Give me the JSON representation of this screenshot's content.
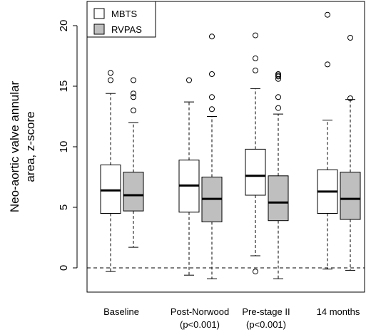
{
  "chart_data": {
    "type": "boxplot",
    "title": "",
    "xlabel": "",
    "ylabel": [
      "Neo-aortic valve annular",
      "area, z-score"
    ],
    "ylim": [
      -2,
      22
    ],
    "yticks": [
      0,
      5,
      10,
      15,
      20
    ],
    "reference_line": {
      "y": 0,
      "style": "dashed"
    },
    "legend": {
      "position": "top-left",
      "entries": [
        {
          "label": "MBTS",
          "color": "#ffffff"
        },
        {
          "label": "RVPAS",
          "color": "#bfbfbf"
        }
      ]
    },
    "categories": [
      {
        "label": "Baseline",
        "sublabel": ""
      },
      {
        "label": "Post-Norwood",
        "sublabel": "(p<0.001)"
      },
      {
        "label": "Pre-stage II",
        "sublabel": "(p<0.001)"
      },
      {
        "label": "14 months",
        "sublabel": ""
      }
    ],
    "series": [
      {
        "name": "MBTS",
        "color": "#ffffff",
        "boxes": [
          {
            "min": -0.3,
            "q1": 4.5,
            "median": 6.4,
            "q3": 8.5,
            "max": 14.4,
            "outliers": [
              15.5,
              16.1
            ]
          },
          {
            "min": -0.6,
            "q1": 4.6,
            "median": 6.8,
            "q3": 8.9,
            "max": 13.7,
            "outliers": [
              15.5
            ]
          },
          {
            "min": 1.0,
            "q1": 6.0,
            "median": 7.6,
            "q3": 9.8,
            "max": 14.8,
            "outliers": [
              -0.3,
              16.3,
              17.3,
              19.2
            ]
          },
          {
            "min": -0.1,
            "q1": 4.5,
            "median": 6.3,
            "q3": 8.1,
            "max": 12.2,
            "outliers": [
              16.8,
              20.9
            ]
          }
        ]
      },
      {
        "name": "RVPAS",
        "color": "#bfbfbf",
        "boxes": [
          {
            "min": 1.7,
            "q1": 4.7,
            "median": 6.0,
            "q3": 7.9,
            "max": 12.0,
            "outliers": [
              13.0,
              14.1,
              14.4,
              15.5
            ]
          },
          {
            "min": -0.9,
            "q1": 3.8,
            "median": 5.7,
            "q3": 7.5,
            "max": 12.5,
            "outliers": [
              13.1,
              14.1,
              16.0,
              19.1
            ]
          },
          {
            "min": -0.9,
            "q1": 3.9,
            "median": 5.4,
            "q3": 7.6,
            "max": 12.7,
            "outliers": [
              13.2,
              14.1,
              15.6,
              15.8,
              15.9,
              16.0
            ]
          },
          {
            "min": -0.2,
            "q1": 4.0,
            "median": 5.7,
            "q3": 7.9,
            "max": 13.9,
            "outliers": [
              14.0,
              19.0
            ]
          }
        ]
      }
    ]
  }
}
